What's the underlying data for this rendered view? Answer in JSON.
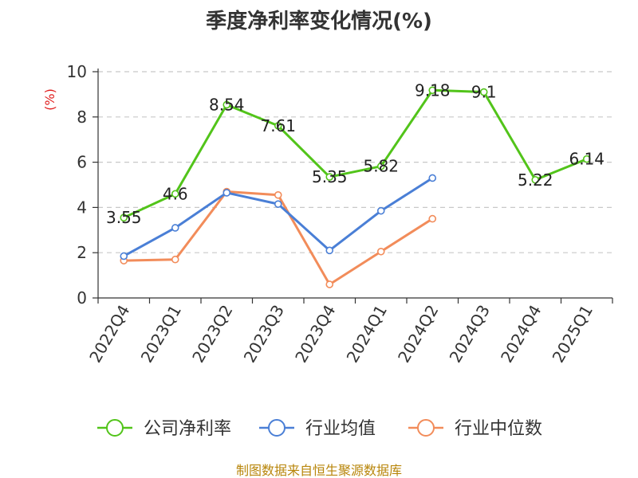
{
  "chart_data": {
    "type": "line",
    "title": "季度净利率变化情况(%)",
    "ylabel": "(%)",
    "xlabel": "",
    "categories": [
      "2022Q4",
      "2023Q1",
      "2023Q2",
      "2023Q3",
      "2023Q4",
      "2024Q1",
      "2024Q2",
      "2024Q3",
      "2024Q4",
      "2025Q1"
    ],
    "ylim": [
      0,
      10
    ],
    "yticks": [
      0,
      2,
      4,
      6,
      8,
      10
    ],
    "grid": true,
    "legend_position": "bottom",
    "series": [
      {
        "name": "公司净利率",
        "color": "#52c41a",
        "values": [
          3.55,
          4.6,
          8.54,
          7.61,
          5.35,
          5.82,
          9.18,
          9.1,
          5.22,
          6.14
        ],
        "labels": [
          "3.55",
          "4.6",
          "8.54",
          "7.61",
          "5.35",
          "5.82",
          "9.18",
          "9.1",
          "5.22",
          "6.14"
        ]
      },
      {
        "name": "行业均值",
        "color": "#4a7fd6",
        "values": [
          1.85,
          3.1,
          4.65,
          4.15,
          2.1,
          3.85,
          5.3,
          null,
          null,
          null
        ]
      },
      {
        "name": "行业中位数",
        "color": "#f28c5a",
        "values": [
          1.65,
          1.7,
          4.7,
          4.55,
          0.6,
          2.05,
          3.5,
          null,
          null,
          null
        ]
      }
    ]
  },
  "footer": "制图数据来自恒生聚源数据库"
}
